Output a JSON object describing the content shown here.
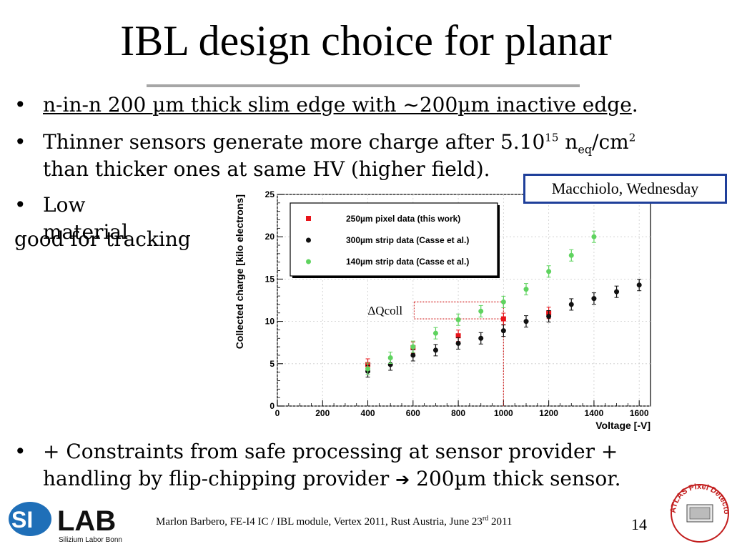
{
  "slide": {
    "title": "IBL design choice for planar",
    "bullets": {
      "b1_u": "n-in-n 200 µm thick slim edge with ~200µm inactive edge",
      "b1_end": ".",
      "b2_a": "Thinner sensors generate more charge after 5.10",
      "b2_sup": "15",
      "b2_b": " n",
      "b2_sub": "eq",
      "b2_c": "/cm",
      "b2_sup2": "2",
      "b2_line2": "than thicker ones at same HV (higher field).",
      "b3": "Low material",
      "b3_cont": "good for tracking",
      "b4_line1": "+ Constraints from safe processing at sensor provider +",
      "b4_line2_a": "handling by flip-chipping provider ",
      "b4_arrow": "➔",
      "b4_line2_b": " 200µm thick sensor."
    },
    "bullet_glyph": "•",
    "callout": "Macchiolo, Wednesday",
    "footer": {
      "a": "Marlon Barbero, FE-I4 IC / IBL module, Vertex 2011, Rust Austria, June 23",
      "sup": "rd",
      "b": " 2011"
    },
    "page_number": "14",
    "logo": {
      "si": "SI",
      "lab": "LAB",
      "sub": "Silizium Labor Bonn"
    },
    "badge_text": "ATLAS Pixel Detector Collaboration"
  },
  "chart_data": {
    "type": "scatter",
    "xlabel": "Voltage [-V]",
    "ylabel": "Collected charge [kilo electrons]",
    "xlim": [
      0,
      1650
    ],
    "ylim": [
      0,
      25
    ],
    "xticks": [
      0,
      200,
      400,
      600,
      800,
      1000,
      1200,
      1400,
      1600
    ],
    "yticks": [
      0,
      5,
      10,
      15,
      20,
      25
    ],
    "grid": true,
    "legend_position": "top-left",
    "annotation": "ΔQcoll",
    "series": [
      {
        "name": "250µm pixel data (this work)",
        "color": "#e8141a",
        "marker": "square",
        "x": [
          400,
          600,
          800,
          1000,
          1200
        ],
        "y": [
          4.9,
          6.9,
          8.3,
          10.3,
          11.0
        ]
      },
      {
        "name": "300µm strip data (Casse et al.)",
        "color": "#111111",
        "marker": "circle",
        "x": [
          400,
          500,
          600,
          700,
          800,
          900,
          1000,
          1100,
          1200,
          1300,
          1400,
          1500,
          1600
        ],
        "y": [
          4.1,
          4.9,
          6.0,
          6.6,
          7.4,
          8.0,
          8.9,
          10.0,
          10.6,
          12.0,
          12.7,
          13.5,
          14.3
        ]
      },
      {
        "name": "140µm strip data (Casse et al.)",
        "color": "#5fd35f",
        "marker": "circle",
        "x": [
          400,
          500,
          600,
          700,
          800,
          900,
          1000,
          1100,
          1200,
          1300,
          1400
        ],
        "y": [
          4.4,
          5.7,
          7.0,
          8.6,
          10.2,
          11.2,
          12.3,
          13.8,
          15.9,
          17.8,
          20.0
        ]
      }
    ]
  }
}
